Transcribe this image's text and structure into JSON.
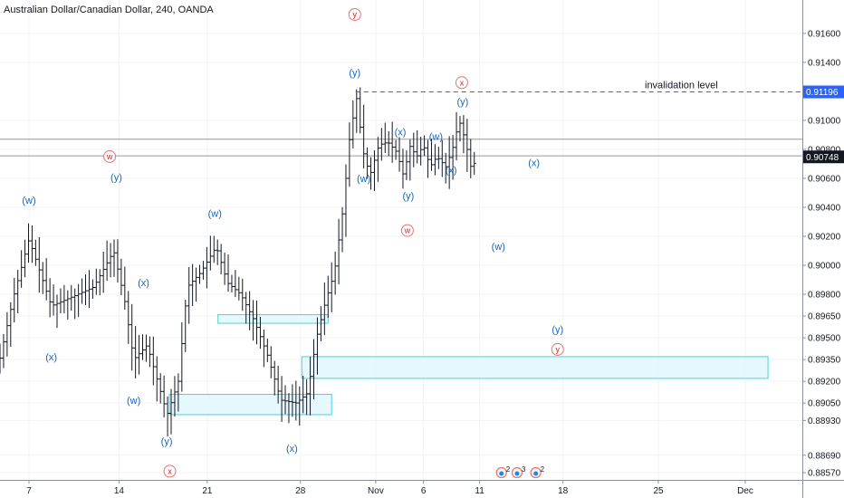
{
  "chart_data": {
    "type": "ohlc",
    "title": "Australian Dollar/Canadian Dollar, 240, OANDA",
    "y_axis": {
      "range": [
        0.8852,
        0.9183
      ],
      "ticks": [
        "0.91600",
        "0.91400",
        "0.91000",
        "0.90800",
        "0.90600",
        "0.90400",
        "0.90200",
        "0.90000",
        "0.89800",
        "0.89650",
        "0.89500",
        "0.89350",
        "0.89200",
        "0.89050",
        "0.88930",
        "0.88690",
        "0.88570"
      ],
      "tick_values": [
        0.916,
        0.914,
        0.91,
        0.908,
        0.906,
        0.904,
        0.902,
        0.9,
        0.898,
        0.8965,
        0.895,
        0.8935,
        0.892,
        0.8905,
        0.8893,
        0.8869,
        0.8857
      ]
    },
    "x_axis": {
      "range": [
        0,
        180
      ],
      "ticks": [
        "7",
        "14",
        "21",
        "28",
        "Nov",
        "6",
        "11",
        "18",
        "25",
        "Dec"
      ],
      "tick_values": [
        6.5,
        26.7,
        46.5,
        67.4,
        84.3,
        95,
        107.6,
        126.3,
        147.7,
        167.2
      ]
    },
    "last_price": {
      "value": 0.90748,
      "label": "0.90748",
      "color": "#131722"
    },
    "invalidation": {
      "value": 0.91196,
      "label": "0.91196",
      "text": "invalidation level",
      "color": "#2962ff"
    },
    "horizontal_lines": [
      0.9087,
      0.90755
    ],
    "zones": [
      {
        "x1": 48.9,
        "x2": 73.6,
        "y1": 0.8966,
        "y2": 0.896
      },
      {
        "x1": 38.0,
        "x2": 74.4,
        "y1": 0.8911,
        "y2": 0.8897
      },
      {
        "x1": 67.7,
        "x2": 172.3,
        "y1": 0.8937,
        "y2": 0.8922
      }
    ],
    "wave_labels_blue": [
      {
        "text": "(w)",
        "x": 6.5,
        "y": 0.9045
      },
      {
        "text": "(x)",
        "x": 11.5,
        "y": 0.8937
      },
      {
        "text": "(y)",
        "x": 26.1,
        "y": 0.9061
      },
      {
        "text": "(x)",
        "x": 32.2,
        "y": 0.8988
      },
      {
        "text": "(w)",
        "x": 30.0,
        "y": 0.8907
      },
      {
        "text": "(y)",
        "x": 37.4,
        "y": 0.8879
      },
      {
        "text": "(w)",
        "x": 48.2,
        "y": 0.9036
      },
      {
        "text": "(x)",
        "x": 65.5,
        "y": 0.8874
      },
      {
        "text": "(y)",
        "x": 79.6,
        "y": 0.9133
      },
      {
        "text": "(w)",
        "x": 81.6,
        "y": 0.906
      },
      {
        "text": "(x)",
        "x": 89.8,
        "y": 0.9092
      },
      {
        "text": "(y)",
        "x": 91.6,
        "y": 0.9048
      },
      {
        "text": "(w)",
        "x": 97.8,
        "y": 0.9089
      },
      {
        "text": "(x)",
        "x": 101.2,
        "y": 0.9066
      },
      {
        "text": "(y)",
        "x": 103.8,
        "y": 0.9113
      },
      {
        "text": "(x)",
        "x": 119.8,
        "y": 0.9071
      },
      {
        "text": "(w)",
        "x": 111.8,
        "y": 0.9013
      },
      {
        "text": "(y)",
        "x": 125.1,
        "y": 0.8956
      }
    ],
    "wave_labels_red": [
      {
        "text": "y",
        "x": 79.6,
        "y": 0.9173
      },
      {
        "text": "x",
        "x": 103.6,
        "y": 0.9126
      },
      {
        "text": "w",
        "x": 24.6,
        "y": 0.9075
      },
      {
        "text": "w",
        "x": 91.4,
        "y": 0.9024
      },
      {
        "text": "x",
        "x": 38.1,
        "y": 0.8858
      },
      {
        "text": "y",
        "x": 125.1,
        "y": 0.8942
      }
    ],
    "event_badges": [
      {
        "text": "2",
        "x": 112.5
      },
      {
        "text": "3",
        "x": 116.0
      },
      {
        "text": "2",
        "x": 120.2
      }
    ]
  }
}
